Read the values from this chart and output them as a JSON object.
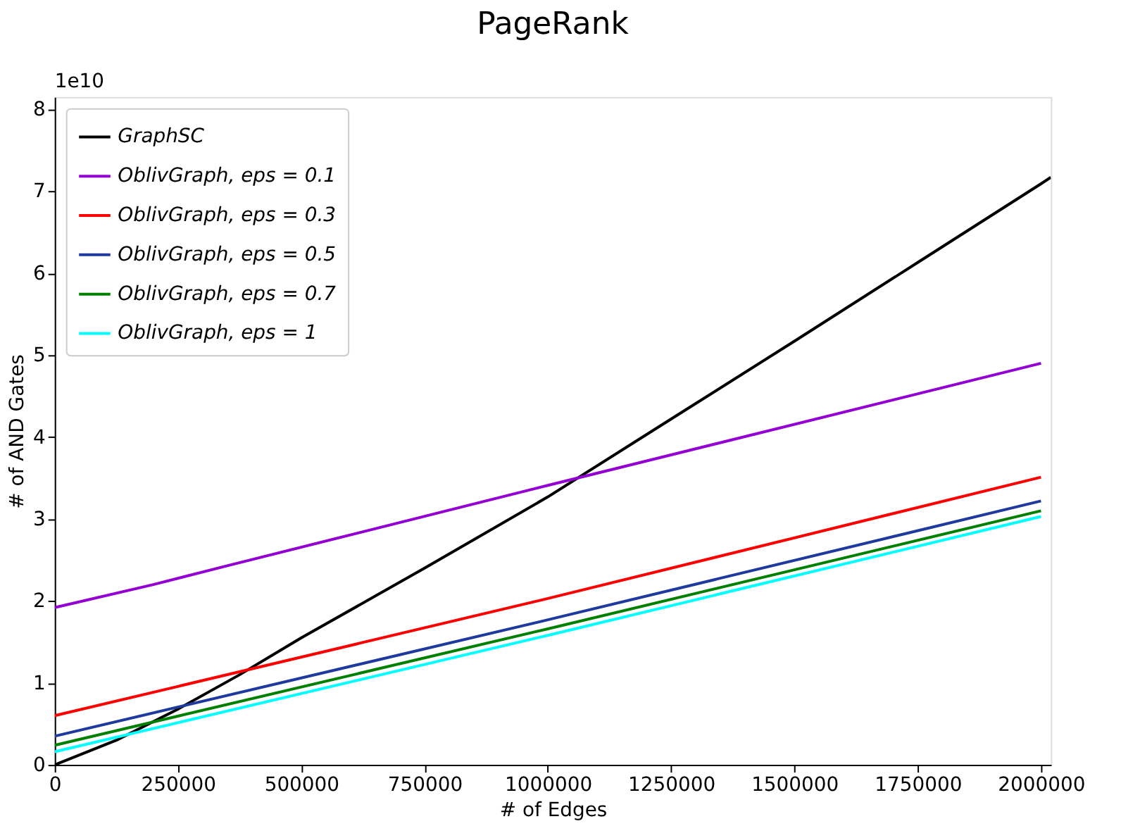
{
  "chart_data": {
    "type": "line",
    "title": "PageRank",
    "xlabel": "# of Edges",
    "ylabel": "# of AND Gates",
    "annotations": [
      "1e10"
    ],
    "xlim": [
      0,
      2020000
    ],
    "xticks": [
      0,
      250000,
      500000,
      750000,
      1000000,
      1250000,
      1500000,
      1750000,
      2000000
    ],
    "ylim": [
      0,
      8.15
    ],
    "yticks": [
      0,
      1,
      2,
      3,
      4,
      5,
      6,
      7,
      8
    ],
    "grid": false,
    "legend": "top left",
    "marker": "none",
    "line_style": "solid",
    "series": [
      {
        "name": "GraphSC",
        "color": "#000000",
        "x": [
          0,
          125000,
          250000,
          375000,
          500000,
          750000,
          1000000,
          1250000,
          1500000,
          1750000,
          2000000,
          2020000
        ],
        "values": [
          0,
          0.3,
          0.68,
          1.1,
          1.55,
          2.4,
          3.27,
          4.22,
          5.17,
          6.13,
          7.09,
          7.17
        ]
      },
      {
        "name": "OblivGraph, eps = 0.1",
        "color": "#9400d3",
        "x": [
          0,
          200000,
          350000,
          1000000,
          2000000
        ],
        "values": [
          1.92,
          2.2,
          2.43,
          3.41,
          4.9
        ]
      },
      {
        "name": "OblivGraph, eps = 0.3",
        "color": "#ff0000",
        "x": [
          0,
          1000000,
          2000000
        ],
        "values": [
          0.6,
          2.03,
          3.51
        ]
      },
      {
        "name": "OblivGraph, eps = 0.5",
        "color": "#1f3a9e",
        "x": [
          0,
          1000000,
          2000000
        ],
        "values": [
          0.35,
          1.77,
          3.22
        ]
      },
      {
        "name": "OblivGraph, eps = 0.7",
        "color": "#008000",
        "x": [
          0,
          1000000,
          2000000
        ],
        "values": [
          0.24,
          1.66,
          3.1
        ]
      },
      {
        "name": "OblivGraph, eps = 1",
        "color": "#00ffff",
        "x": [
          0,
          1000000,
          2000000
        ],
        "values": [
          0.16,
          1.58,
          3.03
        ]
      }
    ]
  }
}
